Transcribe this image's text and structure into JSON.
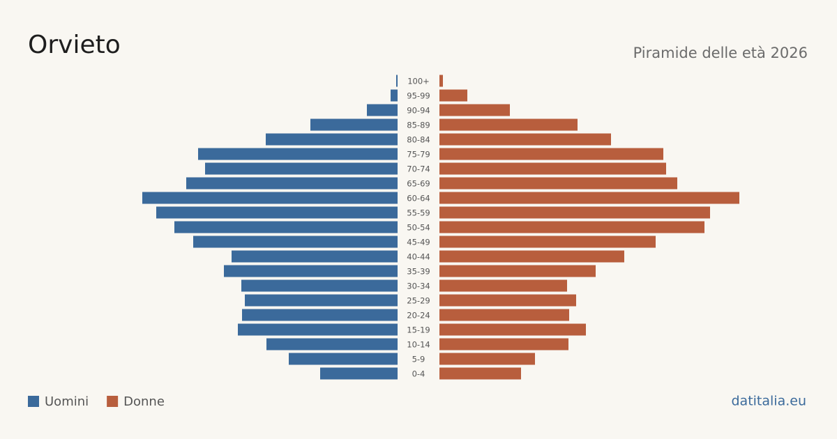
{
  "chart_data": {
    "type": "pyramid",
    "title": "Orvieto",
    "subtitle": "Piramide delle età 2026",
    "source": "datitalia.eu",
    "categories": [
      "100+",
      "95-99",
      "90-94",
      "85-89",
      "80-84",
      "75-79",
      "70-74",
      "65-69",
      "60-64",
      "55-59",
      "50-54",
      "45-49",
      "40-44",
      "35-39",
      "30-34",
      "25-29",
      "20-24",
      "15-19",
      "10-14",
      "5-9",
      "0-4"
    ],
    "series": [
      {
        "name": "Uomini",
        "color": "#3b6a9b",
        "values": [
          4,
          20,
          88,
          250,
          378,
          572,
          552,
          606,
          732,
          692,
          640,
          586,
          476,
          498,
          448,
          438,
          446,
          458,
          376,
          312,
          222
        ]
      },
      {
        "name": "Donne",
        "color": "#b85e3d",
        "values": [
          10,
          80,
          202,
          396,
          492,
          642,
          650,
          682,
          860,
          776,
          760,
          620,
          530,
          448,
          366,
          392,
          372,
          420,
          370,
          274,
          234
        ]
      }
    ]
  }
}
